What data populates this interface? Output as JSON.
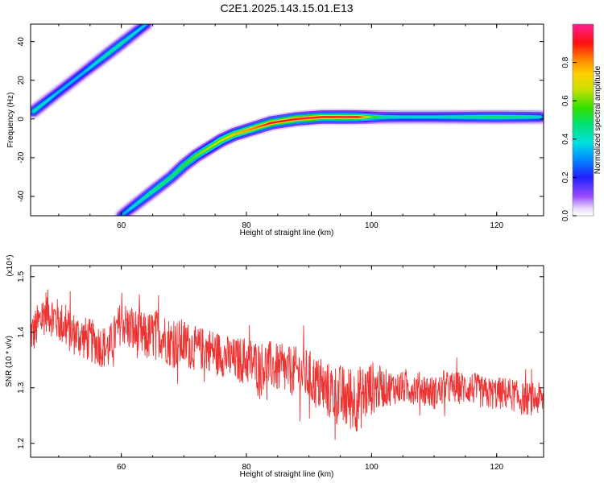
{
  "title": "C2E1.2025.143.15.01.E13",
  "chart_data": [
    {
      "type": "heatmap",
      "xlabel": "Height of straight line (km)",
      "ylabel": "Frequency (Hz)",
      "xlim": [
        45.5,
        127.5
      ],
      "ylim": [
        -50,
        49
      ],
      "xticks": [
        60,
        80,
        100,
        120
      ],
      "yticks": [
        -40,
        -20,
        0,
        20,
        40
      ],
      "colorbar": {
        "label": "Normalized spectral amplitude",
        "range": [
          0,
          1
        ],
        "ticks": [
          0.0,
          0.2,
          0.4,
          0.6,
          0.8
        ],
        "tick_labels": [
          "0.0",
          "0.2",
          "0.4",
          "0.6",
          "0.8"
        ]
      },
      "series": [
        {
          "x": [
            46,
            48,
            50,
            52,
            54,
            56,
            58,
            60,
            62,
            64
          ],
          "y": [
            4,
            9,
            14,
            19,
            24,
            29,
            34,
            39,
            44,
            49
          ],
          "amplitude": [
            0.45,
            0.4,
            0.35,
            0.35,
            0.35,
            0.4,
            0.45,
            0.45,
            0.4,
            0.35
          ]
        },
        {
          "x": [
            60,
            62,
            64,
            66,
            68,
            70,
            72,
            74,
            76,
            78,
            80,
            82,
            84,
            86,
            88,
            90,
            92,
            94,
            96,
            98,
            100,
            102,
            105,
            110,
            115,
            120,
            125,
            127
          ],
          "y": [
            -50,
            -45,
            -40,
            -35,
            -30,
            -24,
            -19,
            -15,
            -11,
            -8,
            -6,
            -4,
            -2,
            -1,
            0,
            0.5,
            1,
            1,
            1,
            1,
            1,
            1,
            1,
            1,
            1,
            1,
            1,
            1
          ],
          "amplitude": [
            0.3,
            0.4,
            0.45,
            0.5,
            0.5,
            0.55,
            0.6,
            0.65,
            0.7,
            0.75,
            0.8,
            0.85,
            0.9,
            0.9,
            0.95,
            0.95,
            0.9,
            0.9,
            0.95,
            0.9,
            0.6,
            0.45,
            0.4,
            0.4,
            0.45,
            0.5,
            0.45,
            0.4
          ]
        }
      ]
    },
    {
      "type": "line",
      "xlabel": "Height of straight line (km)",
      "ylabel": "SNR (10 * v/v)",
      "y_multiplier": "(x10⁴)",
      "xlim": [
        45.5,
        127.5
      ],
      "ylim": [
        1.175,
        1.52
      ],
      "xticks": [
        60,
        80,
        100,
        120
      ],
      "yticks": [
        1.2,
        1.3,
        1.4,
        1.5
      ],
      "ytick_labels": [
        "1.2",
        "1.3",
        "1.4",
        "1.5"
      ],
      "color": "#ee3333",
      "x": [
        46,
        48,
        50,
        52,
        54,
        56,
        58,
        60,
        62,
        64,
        66,
        68,
        70,
        72,
        74,
        76,
        78,
        80,
        82,
        84,
        86,
        88,
        90,
        92,
        94,
        96,
        98,
        100,
        102,
        104,
        106,
        108,
        110,
        112,
        114,
        116,
        118,
        120,
        122,
        124,
        126,
        127
      ],
      "y": [
        1.4,
        1.44,
        1.42,
        1.4,
        1.39,
        1.38,
        1.37,
        1.42,
        1.4,
        1.39,
        1.4,
        1.38,
        1.38,
        1.37,
        1.37,
        1.36,
        1.35,
        1.35,
        1.34,
        1.34,
        1.33,
        1.33,
        1.32,
        1.3,
        1.29,
        1.28,
        1.28,
        1.3,
        1.3,
        1.3,
        1.3,
        1.3,
        1.29,
        1.3,
        1.3,
        1.3,
        1.29,
        1.29,
        1.29,
        1.28,
        1.28,
        1.28
      ],
      "noise": [
        0.04,
        0.04,
        0.04,
        0.04,
        0.04,
        0.04,
        0.04,
        0.04,
        0.045,
        0.045,
        0.045,
        0.045,
        0.045,
        0.04,
        0.04,
        0.04,
        0.04,
        0.045,
        0.045,
        0.045,
        0.045,
        0.045,
        0.05,
        0.05,
        0.055,
        0.06,
        0.06,
        0.05,
        0.035,
        0.03,
        0.03,
        0.03,
        0.03,
        0.03,
        0.03,
        0.03,
        0.03,
        0.03,
        0.03,
        0.03,
        0.03,
        0.03
      ]
    }
  ]
}
